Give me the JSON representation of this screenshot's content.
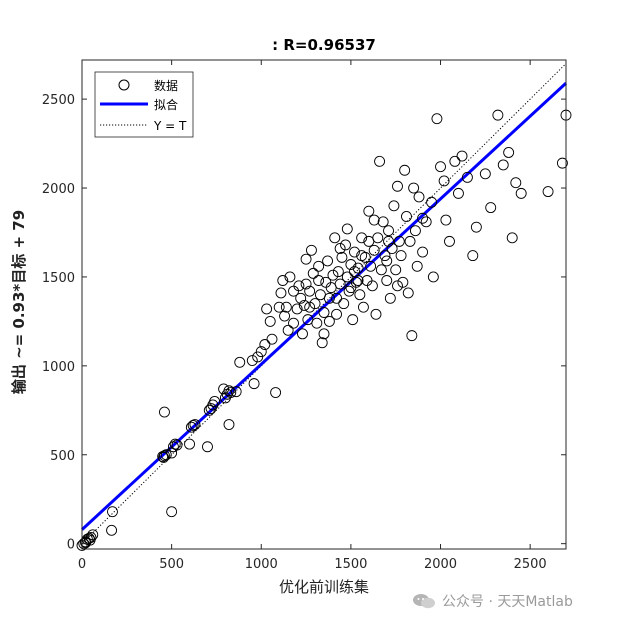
{
  "chart_data": {
    "type": "scatter",
    "title": ": R=0.96537",
    "xlabel": "优化前训练集",
    "ylabel": "输出 ~= 0.93*目标 + 79",
    "xlim": [
      0,
      2700
    ],
    "ylim": [
      -30,
      2720
    ],
    "xticks": [
      0,
      500,
      1000,
      1500,
      2000,
      2500
    ],
    "yticks": [
      0,
      500,
      1000,
      1500,
      2000,
      2500
    ],
    "grid": false,
    "legend_position": "top-left",
    "legend": {
      "data": "数据",
      "fit": "拟合",
      "identity": "Y = T"
    },
    "fit": {
      "slope": 0.93,
      "intercept": 79
    },
    "colors": {
      "points": "#000000",
      "fit": "#0000ff",
      "identity": "#000000"
    },
    "series": [
      {
        "name": "数据",
        "points": [
          [
            0,
            -10
          ],
          [
            10,
            0
          ],
          [
            20,
            10
          ],
          [
            30,
            25
          ],
          [
            40,
            30
          ],
          [
            50,
            35
          ],
          [
            60,
            50
          ],
          [
            20,
            5
          ],
          [
            45,
            20
          ],
          [
            170,
            180
          ],
          [
            165,
            75
          ],
          [
            500,
            180
          ],
          [
            460,
            740
          ],
          [
            450,
            490
          ],
          [
            460,
            495
          ],
          [
            470,
            500
          ],
          [
            455,
            485
          ],
          [
            500,
            510
          ],
          [
            510,
            545
          ],
          [
            520,
            560
          ],
          [
            530,
            555
          ],
          [
            610,
            655
          ],
          [
            620,
            665
          ],
          [
            630,
            670
          ],
          [
            600,
            560
          ],
          [
            700,
            545
          ],
          [
            710,
            750
          ],
          [
            720,
            760
          ],
          [
            730,
            780
          ],
          [
            740,
            800
          ],
          [
            800,
            820
          ],
          [
            810,
            840
          ],
          [
            820,
            860
          ],
          [
            830,
            850
          ],
          [
            790,
            870
          ],
          [
            820,
            670
          ],
          [
            860,
            855
          ],
          [
            880,
            1020
          ],
          [
            950,
            1030
          ],
          [
            960,
            900
          ],
          [
            980,
            1050
          ],
          [
            1000,
            1080
          ],
          [
            1020,
            1120
          ],
          [
            1080,
            850
          ],
          [
            1060,
            1150
          ],
          [
            1050,
            1250
          ],
          [
            1030,
            1320
          ],
          [
            1100,
            1330
          ],
          [
            1110,
            1410
          ],
          [
            1120,
            1480
          ],
          [
            1130,
            1280
          ],
          [
            1150,
            1200
          ],
          [
            1160,
            1500
          ],
          [
            1180,
            1420
          ],
          [
            1200,
            1320
          ],
          [
            1210,
            1450
          ],
          [
            1220,
            1380
          ],
          [
            1230,
            1180
          ],
          [
            1240,
            1340
          ],
          [
            1250,
            1600
          ],
          [
            1260,
            1260
          ],
          [
            1270,
            1420
          ],
          [
            1280,
            1650
          ],
          [
            1290,
            1520
          ],
          [
            1300,
            1350
          ],
          [
            1310,
            1240
          ],
          [
            1320,
            1560
          ],
          [
            1330,
            1400
          ],
          [
            1340,
            1130
          ],
          [
            1350,
            1300
          ],
          [
            1360,
            1470
          ],
          [
            1370,
            1590
          ],
          [
            1380,
            1250
          ],
          [
            1390,
            1440
          ],
          [
            1400,
            1510
          ],
          [
            1410,
            1720
          ],
          [
            1420,
            1380
          ],
          [
            1430,
            1530
          ],
          [
            1440,
            1460
          ],
          [
            1450,
            1610
          ],
          [
            1460,
            1350
          ],
          [
            1470,
            1680
          ],
          [
            1480,
            1500
          ],
          [
            1490,
            1420
          ],
          [
            1500,
            1570
          ],
          [
            1510,
            1260
          ],
          [
            1520,
            1640
          ],
          [
            1530,
            1470
          ],
          [
            1540,
            1550
          ],
          [
            1550,
            1400
          ],
          [
            1560,
            1720
          ],
          [
            1570,
            1330
          ],
          [
            1580,
            1610
          ],
          [
            1590,
            1480
          ],
          [
            1600,
            1870
          ],
          [
            1610,
            1560
          ],
          [
            1620,
            1450
          ],
          [
            1630,
            1650
          ],
          [
            1640,
            1290
          ],
          [
            1650,
            1720
          ],
          [
            1660,
            2150
          ],
          [
            1670,
            1540
          ],
          [
            1680,
            1810
          ],
          [
            1690,
            1620
          ],
          [
            1700,
            1480
          ],
          [
            1710,
            1760
          ],
          [
            1720,
            1380
          ],
          [
            1730,
            1660
          ],
          [
            1740,
            1900
          ],
          [
            1750,
            1540
          ],
          [
            1760,
            2010
          ],
          [
            1770,
            1700
          ],
          [
            1780,
            1620
          ],
          [
            1790,
            1470
          ],
          [
            1800,
            2100
          ],
          [
            1810,
            1840
          ],
          [
            1820,
            1410
          ],
          [
            1830,
            1700
          ],
          [
            1840,
            1170
          ],
          [
            1850,
            2000
          ],
          [
            1860,
            1760
          ],
          [
            1870,
            1560
          ],
          [
            1880,
            1950
          ],
          [
            1900,
            1640
          ],
          [
            1920,
            1810
          ],
          [
            1950,
            1920
          ],
          [
            1960,
            1500
          ],
          [
            1980,
            2390
          ],
          [
            2000,
            2120
          ],
          [
            2020,
            2040
          ],
          [
            2030,
            1820
          ],
          [
            2050,
            1700
          ],
          [
            2080,
            2150
          ],
          [
            2100,
            1970
          ],
          [
            2120,
            2180
          ],
          [
            2150,
            2060
          ],
          [
            2180,
            1620
          ],
          [
            2200,
            1780
          ],
          [
            2250,
            2080
          ],
          [
            2280,
            1890
          ],
          [
            2320,
            2410
          ],
          [
            2350,
            2130
          ],
          [
            2380,
            2200
          ],
          [
            2400,
            1720
          ],
          [
            2420,
            2030
          ],
          [
            2450,
            1970
          ],
          [
            2600,
            1980
          ],
          [
            2680,
            2140
          ],
          [
            2700,
            2410
          ],
          [
            1420,
            1290
          ],
          [
            1480,
            1770
          ],
          [
            1520,
            1530
          ],
          [
            1560,
            1620
          ],
          [
            1600,
            1700
          ],
          [
            1350,
            1180
          ],
          [
            1250,
            1460
          ],
          [
            1180,
            1240
          ],
          [
            1320,
            1480
          ],
          [
            1440,
            1660
          ],
          [
            1540,
            1480
          ],
          [
            1700,
            1590
          ],
          [
            1760,
            1450
          ],
          [
            1900,
            1830
          ],
          [
            1630,
            1820
          ],
          [
            1710,
            1700
          ],
          [
            1500,
            1440
          ],
          [
            1380,
            1380
          ],
          [
            1270,
            1330
          ],
          [
            1140,
            1330
          ]
        ]
      }
    ]
  },
  "watermark": {
    "text": "公众号 · 天天Matlab",
    "logo": "wechat-logo-icon"
  }
}
